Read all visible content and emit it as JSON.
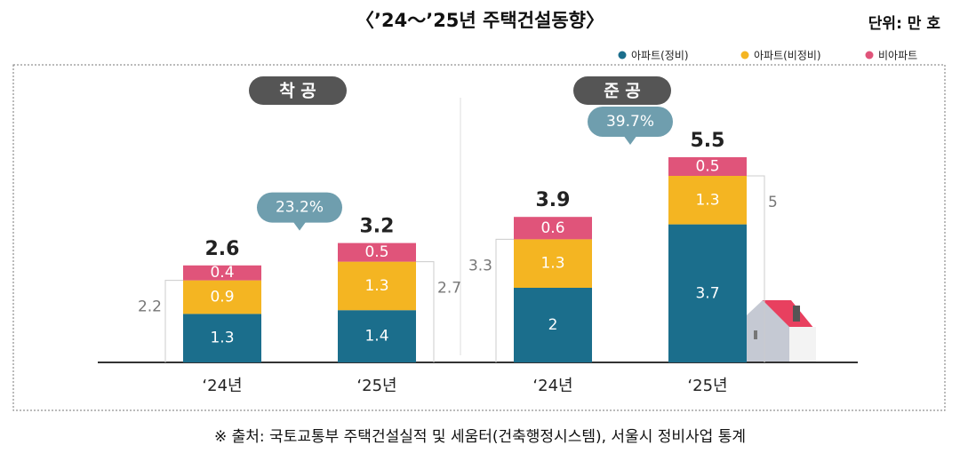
{
  "title": "〈’24～’25년 주택건설동향〉",
  "unit": "단위: 만 호",
  "source": "※ 출처: 국토교통부 주택건설실적 및 세움터(건축행정시스템), 서울시 정비사업 통계",
  "chart_data": [
    {
      "type": "bar",
      "stacked": true,
      "title": "착 공",
      "categories": [
        "‘24년",
        "‘25년"
      ],
      "series": [
        {
          "name": "아파트(정비)",
          "color": "#1b6e8c",
          "values": [
            1.3,
            1.4
          ]
        },
        {
          "name": "아파트(비정비)",
          "color": "#f4b522",
          "values": [
            0.9,
            1.3
          ]
        },
        {
          "name": "비아파트",
          "color": "#e0547a",
          "values": [
            0.4,
            0.5
          ]
        }
      ],
      "totals": [
        2.6,
        3.2
      ],
      "apartment_totals": [
        2.2,
        2.7
      ],
      "growth": "23.2%"
    },
    {
      "type": "bar",
      "stacked": true,
      "title": "준 공",
      "categories": [
        "‘24년",
        "‘25년"
      ],
      "series": [
        {
          "name": "아파트(정비)",
          "color": "#1b6e8c",
          "values": [
            2.0,
            3.7
          ]
        },
        {
          "name": "아파트(비정비)",
          "color": "#f4b522",
          "values": [
            1.3,
            1.3
          ]
        },
        {
          "name": "비아파트",
          "color": "#e0547a",
          "values": [
            0.6,
            0.5
          ]
        }
      ],
      "totals": [
        3.9,
        5.5
      ],
      "apartment_totals": [
        3.3,
        5.0
      ],
      "growth": "39.7%"
    }
  ]
}
